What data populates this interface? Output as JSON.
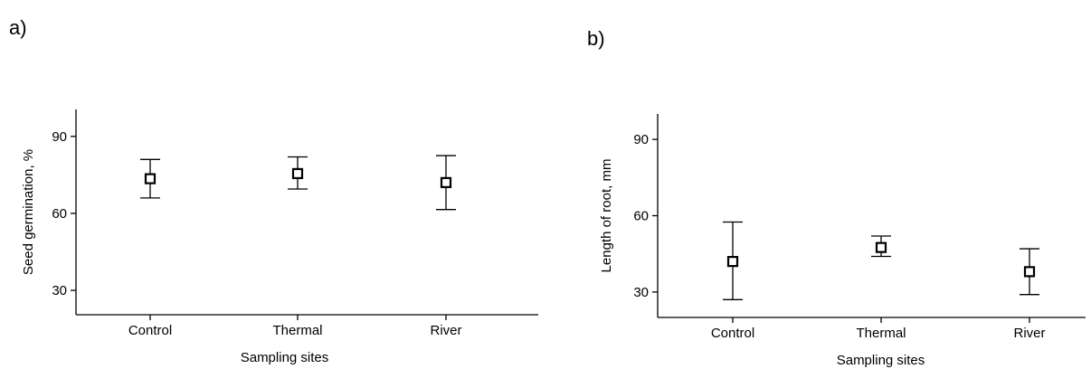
{
  "chart_data": [
    {
      "type": "scatter",
      "panel_label": "a)",
      "categories": [
        "Control",
        "Thermal",
        "River"
      ],
      "series": [
        {
          "values": [
            73.5,
            75.5,
            72.0
          ],
          "error_low": [
            66,
            69.5,
            61.5
          ],
          "error_high": [
            81,
            82,
            82.5
          ]
        }
      ],
      "xlabel": "Sampling sites",
      "ylabel": "Seed germination, %",
      "yticks": [
        30,
        60,
        90
      ],
      "ylim": [
        20.5,
        100.5
      ],
      "grid": false,
      "marker": "open-square"
    },
    {
      "type": "scatter",
      "panel_label": "b)",
      "categories": [
        "Control",
        "Thermal",
        "River"
      ],
      "series": [
        {
          "values": [
            42,
            47.5,
            38
          ],
          "error_low": [
            27,
            44,
            29
          ],
          "error_high": [
            57.5,
            52,
            47
          ]
        }
      ],
      "xlabel": "Sampling sites",
      "ylabel": "Length of root, mm",
      "yticks": [
        30,
        60,
        90
      ],
      "ylim": [
        20,
        100
      ],
      "grid": false,
      "marker": "open-square"
    }
  ]
}
